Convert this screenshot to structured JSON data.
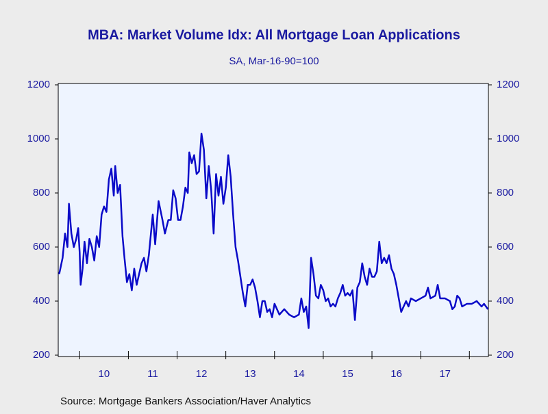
{
  "chart_data": {
    "type": "line",
    "title": "MBA: Market Volume Idx: All Mortgage Loan Applications",
    "subtitle": "SA, Mar-16-90=100",
    "source": "Source:  Mortgage Bankers Association/Haver Analytics",
    "color": "#0a0ac8",
    "ylim": [
      200,
      1200
    ],
    "yticks": [
      200,
      400,
      600,
      800,
      1000,
      1200
    ],
    "xlim": [
      2009.56,
      2018.39
    ],
    "xticks": [
      {
        "value": 2010.5,
        "label": "10"
      },
      {
        "value": 2011.5,
        "label": "11"
      },
      {
        "value": 2012.5,
        "label": "12"
      },
      {
        "value": 2013.5,
        "label": "13"
      },
      {
        "value": 2014.5,
        "label": "14"
      },
      {
        "value": 2015.5,
        "label": "15"
      },
      {
        "value": 2016.5,
        "label": "16"
      },
      {
        "value": 2017.5,
        "label": "17"
      }
    ],
    "x": [
      2009.58,
      2009.65,
      2009.7,
      2009.75,
      2009.78,
      2009.83,
      2009.88,
      2009.93,
      2009.97,
      2010.0,
      2010.02,
      2010.06,
      2010.1,
      2010.15,
      2010.2,
      2010.25,
      2010.3,
      2010.35,
      2010.4,
      2010.45,
      2010.5,
      2010.55,
      2010.6,
      2010.65,
      2010.7,
      2010.73,
      2010.78,
      2010.83,
      2010.88,
      2010.92,
      2010.97,
      2011.02,
      2011.07,
      2011.12,
      2011.17,
      2011.22,
      2011.27,
      2011.32,
      2011.37,
      2011.42,
      2011.5,
      2011.55,
      2011.62,
      2011.7,
      2011.75,
      2011.82,
      2011.87,
      2011.92,
      2011.97,
      2012.02,
      2012.07,
      2012.12,
      2012.17,
      2012.22,
      2012.25,
      2012.3,
      2012.35,
      2012.4,
      2012.45,
      2012.5,
      2012.55,
      2012.6,
      2012.65,
      2012.7,
      2012.75,
      2012.8,
      2012.85,
      2012.9,
      2012.95,
      2013.0,
      2013.05,
      2013.1,
      2013.15,
      2013.2,
      2013.25,
      2013.3,
      2013.35,
      2013.4,
      2013.45,
      2013.5,
      2013.55,
      2013.6,
      2013.65,
      2013.7,
      2013.75,
      2013.8,
      2013.85,
      2013.9,
      2013.95,
      2014.0,
      2014.1,
      2014.2,
      2014.3,
      2014.4,
      2014.5,
      2014.55,
      2014.6,
      2014.65,
      2014.7,
      2014.75,
      2014.8,
      2014.85,
      2014.9,
      2014.95,
      2015.0,
      2015.05,
      2015.1,
      2015.15,
      2015.2,
      2015.25,
      2015.3,
      2015.35,
      2015.4,
      2015.45,
      2015.5,
      2015.55,
      2015.6,
      2015.65,
      2015.7,
      2015.75,
      2015.8,
      2015.85,
      2015.9,
      2015.95,
      2016.0,
      2016.05,
      2016.1,
      2016.15,
      2016.2,
      2016.25,
      2016.3,
      2016.35,
      2016.4,
      2016.45,
      2016.5,
      2016.55,
      2016.6,
      2016.65,
      2016.7,
      2016.75,
      2016.8,
      2016.9,
      2017.0,
      2017.1,
      2017.15,
      2017.2,
      2017.3,
      2017.35,
      2017.4,
      2017.5,
      2017.6,
      2017.65,
      2017.7,
      2017.75,
      2017.8,
      2017.85,
      2017.95,
      2018.05,
      2018.15,
      2018.25,
      2018.3,
      2018.38
    ],
    "values": [
      500,
      560,
      650,
      600,
      760,
      650,
      600,
      630,
      670,
      580,
      460,
      520,
      620,
      540,
      630,
      600,
      550,
      640,
      600,
      720,
      750,
      730,
      850,
      890,
      790,
      900,
      800,
      830,
      640,
      560,
      470,
      500,
      440,
      520,
      460,
      500,
      540,
      560,
      510,
      570,
      720,
      610,
      770,
      700,
      650,
      700,
      700,
      810,
      780,
      700,
      700,
      750,
      820,
      800,
      950,
      910,
      940,
      870,
      880,
      1020,
      960,
      780,
      900,
      810,
      650,
      870,
      790,
      860,
      760,
      820,
      940,
      860,
      720,
      600,
      550,
      490,
      430,
      380,
      460,
      460,
      480,
      450,
      400,
      340,
      400,
      400,
      360,
      370,
      340,
      390,
      350,
      370,
      350,
      340,
      350,
      410,
      360,
      380,
      300,
      560,
      500,
      420,
      410,
      460,
      440,
      400,
      410,
      380,
      390,
      380,
      410,
      430,
      460,
      420,
      430,
      420,
      440,
      330,
      450,
      470,
      540,
      490,
      460,
      520,
      490,
      490,
      510,
      620,
      540,
      560,
      540,
      570,
      520,
      500,
      460,
      410,
      360,
      380,
      400,
      380,
      410,
      400,
      410,
      420,
      450,
      410,
      420,
      460,
      410,
      410,
      400,
      370,
      380,
      420,
      410,
      380,
      390,
      390,
      400,
      380,
      390,
      370
    ]
  }
}
